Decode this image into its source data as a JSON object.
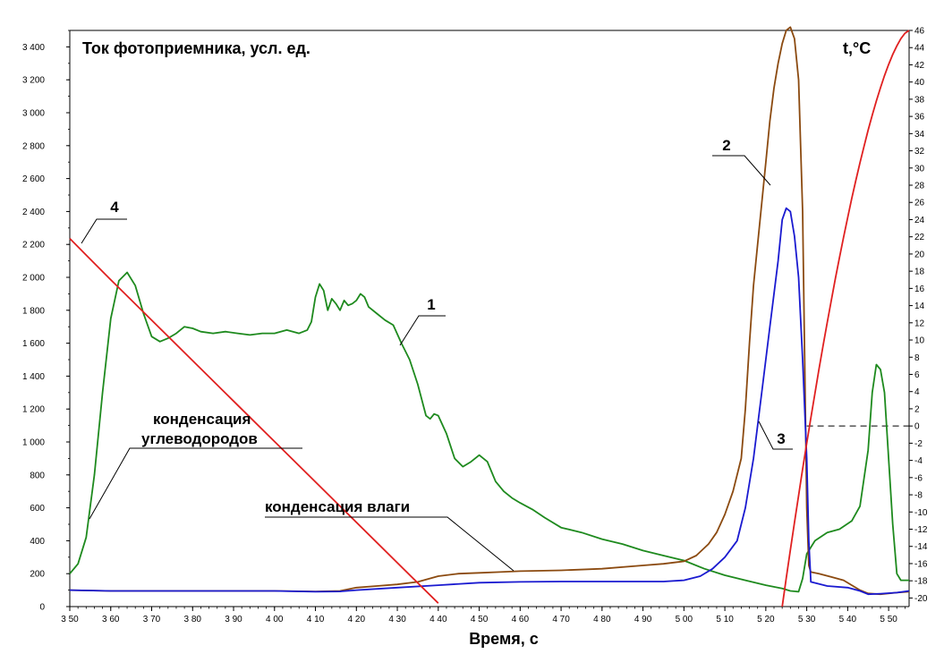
{
  "chart_data": {
    "type": "line",
    "title_left": "Ток фотоприемника, усл. ед.",
    "title_right": "t,°C",
    "xlabel": "Время, с",
    "xlim": [
      350,
      555
    ],
    "ylim_left": [
      0,
      3500
    ],
    "ylim_right": [
      -21,
      46
    ],
    "x_ticks": [
      "3 50",
      "3 60",
      "3 70",
      "3 80",
      "3 90",
      "4 00",
      "4 10",
      "4 20",
      "4 30",
      "4 40",
      "4 50",
      "4 60",
      "4 70",
      "4 80",
      "4 90",
      "5 00",
      "5 10",
      "5 20",
      "5 30",
      "5 40",
      "5 50"
    ],
    "x_tick_values": [
      350,
      360,
      370,
      380,
      390,
      400,
      410,
      420,
      430,
      440,
      450,
      460,
      470,
      480,
      490,
      500,
      510,
      520,
      530,
      540,
      550
    ],
    "y_left_ticks": [
      "0",
      "200",
      "400",
      "600",
      "800",
      "1 000",
      "1 200",
      "1 400",
      "1 600",
      "1 800",
      "2 000",
      "2 200",
      "2 400",
      "2 600",
      "2 800",
      "3 000",
      "3 200",
      "3 400"
    ],
    "y_left_tick_values": [
      0,
      200,
      400,
      600,
      800,
      1000,
      1200,
      1400,
      1600,
      1800,
      2000,
      2200,
      2400,
      2600,
      2800,
      3000,
      3200,
      3400
    ],
    "y_right_ticks": [
      "-20",
      "-18",
      "-16",
      "-14",
      "-12",
      "-10",
      "-8",
      "-6",
      "-4",
      "-2",
      "0",
      "2",
      "4",
      "6",
      "8",
      "10",
      "12",
      "14",
      "16",
      "18",
      "20",
      "22",
      "24",
      "26",
      "28",
      "30",
      "32",
      "34",
      "36",
      "38",
      "40",
      "42",
      "44",
      "46"
    ],
    "y_right_tick_values": [
      -20,
      -18,
      -16,
      -14,
      -12,
      -10,
      -8,
      -6,
      -4,
      -2,
      0,
      2,
      4,
      6,
      8,
      10,
      12,
      14,
      16,
      18,
      20,
      22,
      24,
      26,
      28,
      30,
      32,
      34,
      36,
      38,
      40,
      42,
      44,
      46
    ],
    "series": [
      {
        "name": "1",
        "axis": "left",
        "color": "#1e8a1e",
        "points": [
          [
            350,
            200
          ],
          [
            352,
            260
          ],
          [
            354,
            420
          ],
          [
            356,
            800
          ],
          [
            358,
            1300
          ],
          [
            360,
            1750
          ],
          [
            362,
            1980
          ],
          [
            364,
            2030
          ],
          [
            366,
            1950
          ],
          [
            368,
            1780
          ],
          [
            370,
            1640
          ],
          [
            372,
            1610
          ],
          [
            374,
            1630
          ],
          [
            376,
            1660
          ],
          [
            378,
            1700
          ],
          [
            380,
            1690
          ],
          [
            382,
            1670
          ],
          [
            385,
            1660
          ],
          [
            388,
            1670
          ],
          [
            391,
            1660
          ],
          [
            394,
            1650
          ],
          [
            397,
            1660
          ],
          [
            400,
            1660
          ],
          [
            403,
            1680
          ],
          [
            406,
            1660
          ],
          [
            408,
            1680
          ],
          [
            409,
            1730
          ],
          [
            410,
            1880
          ],
          [
            411,
            1960
          ],
          [
            412,
            1920
          ],
          [
            413,
            1800
          ],
          [
            414,
            1870
          ],
          [
            415,
            1840
          ],
          [
            416,
            1800
          ],
          [
            417,
            1860
          ],
          [
            418,
            1830
          ],
          [
            419,
            1840
          ],
          [
            420,
            1860
          ],
          [
            421,
            1900
          ],
          [
            422,
            1880
          ],
          [
            423,
            1820
          ],
          [
            425,
            1780
          ],
          [
            427,
            1740
          ],
          [
            429,
            1710
          ],
          [
            431,
            1600
          ],
          [
            433,
            1500
          ],
          [
            435,
            1350
          ],
          [
            437,
            1160
          ],
          [
            438,
            1140
          ],
          [
            439,
            1170
          ],
          [
            440,
            1160
          ],
          [
            442,
            1050
          ],
          [
            444,
            900
          ],
          [
            446,
            850
          ],
          [
            448,
            880
          ],
          [
            450,
            920
          ],
          [
            452,
            880
          ],
          [
            454,
            760
          ],
          [
            456,
            700
          ],
          [
            458,
            660
          ],
          [
            460,
            630
          ],
          [
            463,
            590
          ],
          [
            466,
            540
          ],
          [
            470,
            480
          ],
          [
            475,
            450
          ],
          [
            480,
            410
          ],
          [
            485,
            380
          ],
          [
            490,
            340
          ],
          [
            495,
            310
          ],
          [
            500,
            280
          ],
          [
            505,
            230
          ],
          [
            510,
            190
          ],
          [
            515,
            160
          ],
          [
            520,
            130
          ],
          [
            524,
            110
          ],
          [
            526,
            95
          ],
          [
            528,
            90
          ],
          [
            529,
            170
          ],
          [
            530,
            320
          ],
          [
            532,
            400
          ],
          [
            535,
            450
          ],
          [
            538,
            470
          ],
          [
            541,
            520
          ],
          [
            543,
            610
          ],
          [
            545,
            950
          ],
          [
            546,
            1300
          ],
          [
            547,
            1470
          ],
          [
            548,
            1440
          ],
          [
            549,
            1300
          ],
          [
            550,
            900
          ],
          [
            551,
            500
          ],
          [
            552,
            200
          ],
          [
            553,
            160
          ],
          [
            555,
            160
          ]
        ]
      },
      {
        "name": "2",
        "axis": "left",
        "color": "#8b4a10",
        "points": [
          [
            350,
            100
          ],
          [
            360,
            95
          ],
          [
            370,
            95
          ],
          [
            380,
            95
          ],
          [
            390,
            95
          ],
          [
            400,
            95
          ],
          [
            410,
            92
          ],
          [
            416,
            95
          ],
          [
            420,
            115
          ],
          [
            425,
            125
          ],
          [
            430,
            135
          ],
          [
            435,
            150
          ],
          [
            440,
            185
          ],
          [
            445,
            200
          ],
          [
            450,
            205
          ],
          [
            455,
            210
          ],
          [
            460,
            215
          ],
          [
            470,
            220
          ],
          [
            480,
            230
          ],
          [
            490,
            250
          ],
          [
            495,
            260
          ],
          [
            500,
            275
          ],
          [
            503,
            310
          ],
          [
            506,
            380
          ],
          [
            508,
            450
          ],
          [
            510,
            560
          ],
          [
            512,
            700
          ],
          [
            514,
            900
          ],
          [
            515,
            1200
          ],
          [
            516,
            1600
          ],
          [
            517,
            1950
          ],
          [
            518,
            2200
          ],
          [
            519,
            2450
          ],
          [
            520,
            2700
          ],
          [
            521,
            2950
          ],
          [
            522,
            3150
          ],
          [
            523,
            3300
          ],
          [
            524,
            3420
          ],
          [
            525,
            3500
          ],
          [
            526,
            3520
          ],
          [
            527,
            3450
          ],
          [
            528,
            3200
          ],
          [
            529,
            2400
          ],
          [
            529.5,
            1500
          ],
          [
            530,
            600
          ],
          [
            530.5,
            250
          ],
          [
            531,
            210
          ],
          [
            533,
            200
          ],
          [
            536,
            180
          ],
          [
            539,
            160
          ],
          [
            541,
            130
          ],
          [
            543,
            100
          ],
          [
            545,
            80
          ],
          [
            548,
            75
          ],
          [
            552,
            85
          ],
          [
            555,
            90
          ]
        ]
      },
      {
        "name": "3",
        "axis": "left",
        "color": "#1a1ad0",
        "points": [
          [
            350,
            100
          ],
          [
            360,
            95
          ],
          [
            370,
            95
          ],
          [
            380,
            95
          ],
          [
            390,
            95
          ],
          [
            400,
            95
          ],
          [
            410,
            90
          ],
          [
            416,
            92
          ],
          [
            420,
            100
          ],
          [
            430,
            115
          ],
          [
            440,
            130
          ],
          [
            450,
            145
          ],
          [
            460,
            150
          ],
          [
            470,
            152
          ],
          [
            480,
            152
          ],
          [
            490,
            152
          ],
          [
            495,
            152
          ],
          [
            500,
            160
          ],
          [
            504,
            185
          ],
          [
            507,
            230
          ],
          [
            510,
            300
          ],
          [
            513,
            400
          ],
          [
            515,
            600
          ],
          [
            517,
            900
          ],
          [
            519,
            1300
          ],
          [
            521,
            1700
          ],
          [
            523,
            2100
          ],
          [
            524,
            2350
          ],
          [
            525,
            2420
          ],
          [
            526,
            2400
          ],
          [
            527,
            2250
          ],
          [
            528,
            2000
          ],
          [
            529,
            1500
          ],
          [
            530,
            900
          ],
          [
            530.5,
            400
          ],
          [
            531,
            150
          ],
          [
            535,
            125
          ],
          [
            540,
            115
          ],
          [
            543,
            95
          ],
          [
            545,
            75
          ],
          [
            548,
            78
          ],
          [
            552,
            85
          ],
          [
            555,
            95
          ]
        ]
      },
      {
        "name": "4",
        "axis": "right",
        "color": "#e02020",
        "points": [
          [
            350,
            21.8
          ],
          [
            355,
            19.4
          ],
          [
            360,
            17.0
          ],
          [
            370,
            12.3
          ],
          [
            380,
            7.6
          ],
          [
            390,
            2.9
          ],
          [
            400,
            -1.8
          ],
          [
            410,
            -6.5
          ],
          [
            420,
            -11.2
          ],
          [
            430,
            -15.9
          ],
          [
            440,
            -20.6
          ]
        ],
        "note_segment": "part1"
      }
    ]
  },
  "labels": {
    "s1": "1",
    "s2": "2",
    "s3": "3",
    "s4": "4",
    "hydrocarbons_line1": "конденсация",
    "hydrocarbons_line2": "углеводородов",
    "moisture": "конденсация влаги"
  },
  "colors": {
    "axis": "#000000",
    "green": "#1e8a1e",
    "brown": "#8b4a10",
    "blue": "#1a1ad0",
    "red": "#e02020"
  }
}
